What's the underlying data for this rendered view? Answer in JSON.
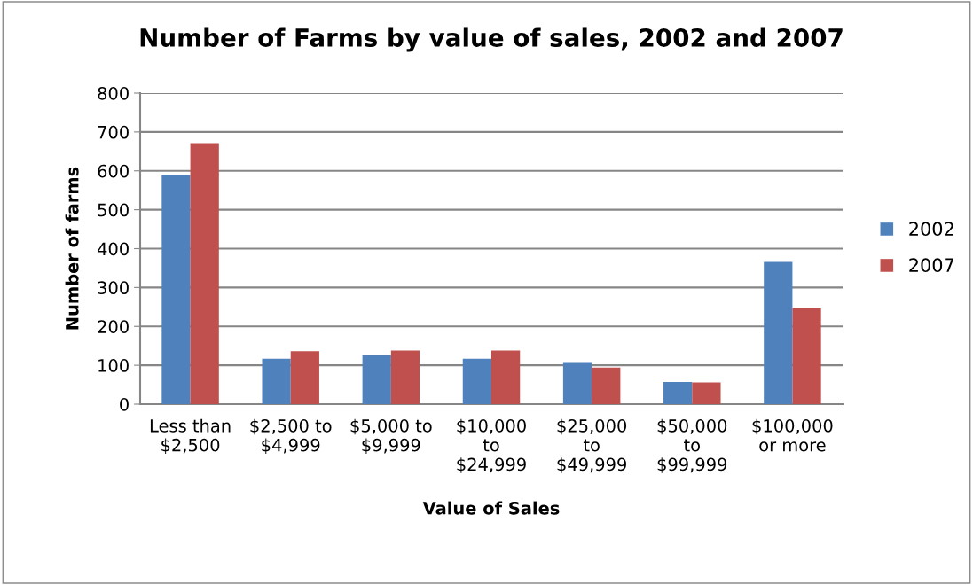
{
  "chart_data": {
    "type": "bar",
    "title": "Number of Farms by value of sales, 2002 and 2007",
    "xlabel": "Value of Sales",
    "ylabel": "Number of farms",
    "categories": [
      "Less than\n$2,500",
      "$2,500 to\n$4,999",
      "$5,000 to\n$9,999",
      "$10,000\nto\n$24,999",
      "$25,000\nto\n$49,999",
      "$50,000\nto\n$99,999",
      "$100,000\nor more"
    ],
    "series": [
      {
        "name": "2002",
        "color": "#4f81bd",
        "values": [
          590,
          117,
          127,
          117,
          108,
          57,
          366
        ]
      },
      {
        "name": "2007",
        "color": "#c0504d",
        "values": [
          671,
          136,
          138,
          138,
          94,
          56,
          248
        ]
      }
    ],
    "ylim": [
      0,
      800
    ],
    "yticks": [
      0,
      100,
      200,
      300,
      400,
      500,
      600,
      700,
      800
    ],
    "grid": "y",
    "legend": "right"
  }
}
